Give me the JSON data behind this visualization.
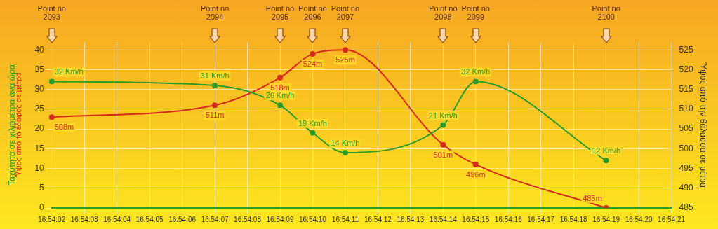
{
  "chart_data": {
    "type": "line",
    "categories": [
      "16:54:02",
      "16:54:03",
      "16:54:04",
      "16:54:05",
      "16:54:06",
      "16:54:07",
      "16:54:08",
      "16:54:09",
      "16:54:10",
      "16:54:11",
      "16:54:12",
      "16:54:13",
      "16:54:14",
      "16:54:15",
      "16:54:16",
      "16:54:17",
      "16:54:18",
      "16:54:19",
      "16:54:20",
      "16:54:21"
    ],
    "series": [
      {
        "color": "#2a9d2a",
        "values": [
          32,
          null,
          null,
          null,
          null,
          31,
          null,
          26,
          19,
          14,
          null,
          null,
          21,
          32,
          null,
          null,
          null,
          12,
          null,
          null
        ],
        "value_labels": [
          "32 Km/h",
          null,
          null,
          null,
          null,
          "31 Km/h",
          null,
          "26 Km/h",
          "19 Km/h",
          "14 Km/h",
          null,
          null,
          "21 Km/h",
          "32 Km/h",
          null,
          null,
          null,
          "12 Km/h",
          null,
          null
        ]
      },
      {
        "color": "#d42a1a",
        "axis": "y2",
        "values": [
          508,
          null,
          null,
          null,
          null,
          511,
          null,
          518,
          524,
          525,
          null,
          null,
          501,
          496,
          null,
          null,
          null,
          485,
          null,
          null
        ],
        "value_labels": [
          "508m",
          null,
          null,
          null,
          null,
          "511m",
          null,
          "518m",
          "524m",
          "525m",
          null,
          null,
          "501m",
          "496m",
          null,
          null,
          null,
          "485m",
          null,
          null
        ]
      }
    ],
    "ylabel": "Ταχύτητα σε χιλιόμετρα ανά ώρα",
    "y2label": "Ύψος από την θάλασσα σε μέτρα",
    "ylim": [
      0,
      42
    ],
    "yticks": [
      0,
      5,
      10,
      15,
      20,
      25,
      30,
      35,
      40
    ],
    "y2lim": [
      485,
      527
    ],
    "y2ticks": [
      485,
      490,
      495,
      500,
      505,
      510,
      515,
      520,
      525
    ],
    "annotations": [
      "Ύψος από το έδαφος σε μέτρα",
      "Point no\n2093",
      "Point no\n2094",
      "Point no\n2095",
      "Point no\n2096",
      "Point no\n2097",
      "Point no\n2098",
      "Point no\n2099",
      "Point no\n2100"
    ],
    "grid": true,
    "legend": false,
    "marker": "circle",
    "line_style": "solid"
  }
}
